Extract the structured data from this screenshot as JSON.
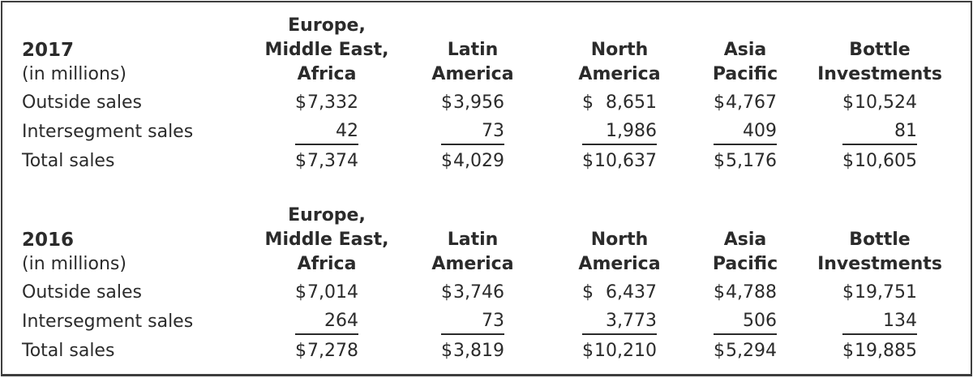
{
  "figure": {
    "sections": [
      {
        "year": "2017",
        "unit": "(in millions)",
        "headers": [
          {
            "lines": [
              "Europe,",
              "Middle East,",
              "Africa"
            ]
          },
          {
            "lines": [
              "Latin",
              "America"
            ]
          },
          {
            "lines": [
              "North",
              "America"
            ]
          },
          {
            "lines": [
              "Asia",
              "Pacific"
            ]
          },
          {
            "lines": [
              "Bottle",
              "Investments"
            ]
          }
        ],
        "rows": [
          {
            "label": "Outside sales",
            "cells": [
              {
                "prefix": "$",
                "amount": "7,332"
              },
              {
                "prefix": "$",
                "amount": "3,956"
              },
              {
                "prefix": "$",
                "amount": "8,651"
              },
              {
                "prefix": "$",
                "amount": "4,767"
              },
              {
                "prefix": "$",
                "amount": "10,524"
              }
            ]
          },
          {
            "label": "Intersegment sales",
            "cells": [
              {
                "prefix": "",
                "amount": "42"
              },
              {
                "prefix": "",
                "amount": "73"
              },
              {
                "prefix": "",
                "amount": "1,986"
              },
              {
                "prefix": "",
                "amount": "409"
              },
              {
                "prefix": "",
                "amount": "81"
              }
            ]
          },
          {
            "label": "Total sales",
            "cells": [
              {
                "prefix": "$",
                "amount": "7,374"
              },
              {
                "prefix": "$",
                "amount": "4,029"
              },
              {
                "prefix": "$",
                "amount": "10,637"
              },
              {
                "prefix": "$",
                "amount": "5,176"
              },
              {
                "prefix": "$",
                "amount": "10,605"
              }
            ]
          }
        ]
      },
      {
        "year": "2016",
        "unit": "(in millions)",
        "headers": [
          {
            "lines": [
              "Europe,",
              "Middle East,",
              "Africa"
            ]
          },
          {
            "lines": [
              "Latin",
              "America"
            ]
          },
          {
            "lines": [
              "North",
              "America"
            ]
          },
          {
            "lines": [
              "Asia",
              "Pacific"
            ]
          },
          {
            "lines": [
              "Bottle",
              "Investments"
            ]
          }
        ],
        "rows": [
          {
            "label": "Outside sales",
            "cells": [
              {
                "prefix": "$",
                "amount": "7,014"
              },
              {
                "prefix": "$",
                "amount": "3,746"
              },
              {
                "prefix": "$",
                "amount": "6,437"
              },
              {
                "prefix": "$",
                "amount": "4,788"
              },
              {
                "prefix": "$",
                "amount": "19,751"
              }
            ]
          },
          {
            "label": "Intersegment sales",
            "cells": [
              {
                "prefix": "",
                "amount": "264"
              },
              {
                "prefix": "",
                "amount": "73"
              },
              {
                "prefix": "",
                "amount": "3,773"
              },
              {
                "prefix": "",
                "amount": "506"
              },
              {
                "prefix": "",
                "amount": "134"
              }
            ]
          },
          {
            "label": "Total sales",
            "cells": [
              {
                "prefix": "$",
                "amount": "7,278"
              },
              {
                "prefix": "$",
                "amount": "3,819"
              },
              {
                "prefix": "$",
                "amount": "10,210"
              },
              {
                "prefix": "$",
                "amount": "5,294"
              },
              {
                "prefix": "$",
                "amount": "19,885"
              }
            ]
          }
        ]
      }
    ]
  }
}
